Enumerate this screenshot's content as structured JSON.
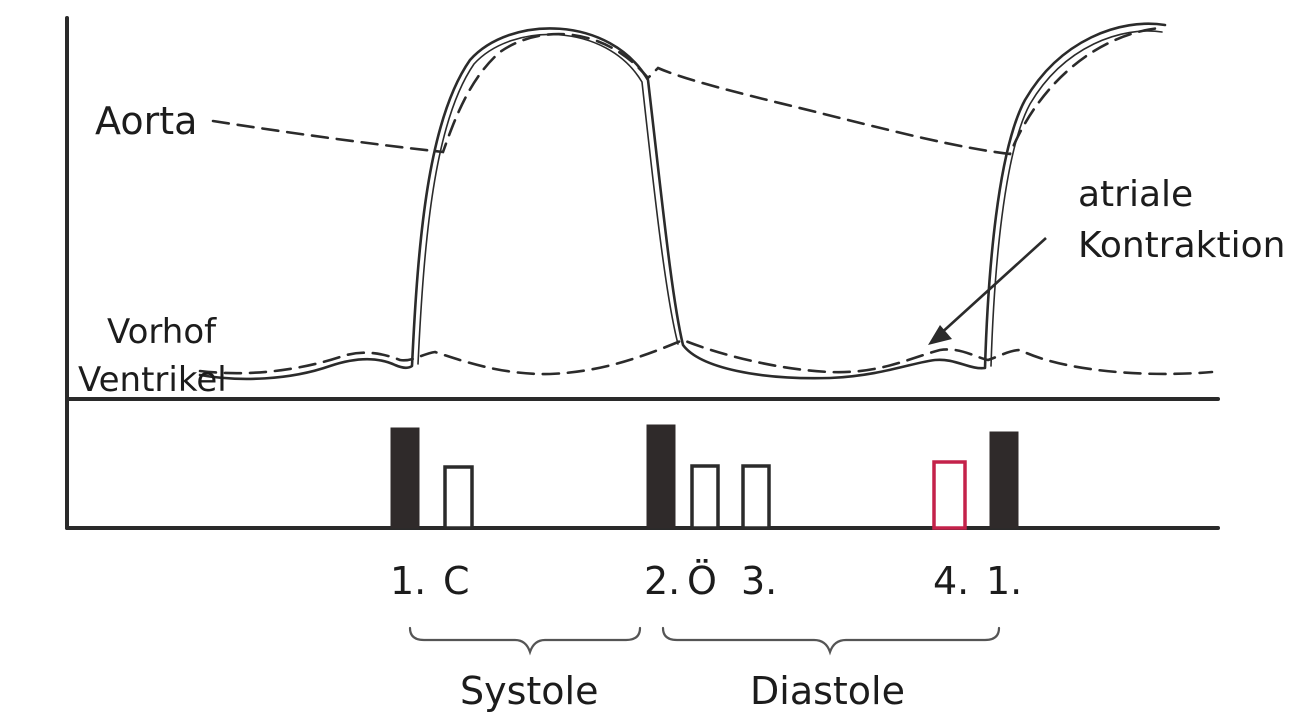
{
  "labels": {
    "aorta": "Aorta",
    "vorhof": "Vorhof",
    "ventrikel": "Ventrikel",
    "atriale": "atriale",
    "kontraktion": "Kontraktion",
    "systole": "Systole",
    "diastole": "Diastole"
  },
  "sound_labels": {
    "s1": "1.",
    "c": "C",
    "s2": "2.",
    "o": "Ö",
    "s3": "3.",
    "s4": "4.",
    "s1_next": "1."
  },
  "colors": {
    "ink": "#2b2b2b",
    "filled_bar": "#2f2a2a",
    "highlight_bar": "#c4224a"
  }
}
